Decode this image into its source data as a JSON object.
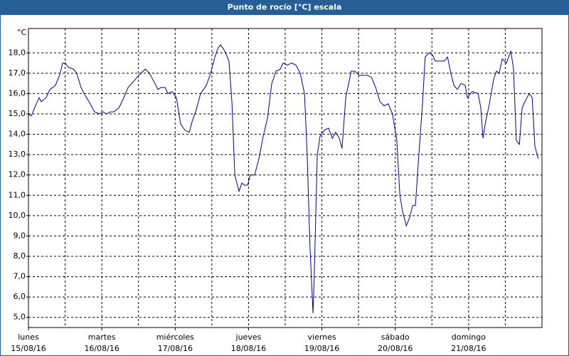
{
  "chart_data": {
    "type": "line",
    "title": "Punto de rocío [°C] escala",
    "y_unit": "°C",
    "series": [
      {
        "color": "#0000a0",
        "x": [
          0,
          0.9,
          2.3,
          3.5,
          4.2,
          5.8,
          7.0,
          8.8,
          10.2,
          11.2,
          12.1,
          13.0,
          14.7,
          15.8,
          17.2,
          18.6,
          20.2,
          21.6,
          23.3,
          24.4,
          25.6,
          26.8,
          27.9,
          29.6,
          30.9,
          32.6,
          34.4,
          36.1,
          38.2,
          39.6,
          41.0,
          42.4,
          43.3,
          44.7,
          45.6,
          47.0,
          48.4,
          49.8,
          51.2,
          52.6,
          53.5,
          54.9,
          56.3,
          58.2,
          59.6,
          61.0,
          61.9,
          62.8,
          64.2,
          65.6,
          66.6,
          67.5,
          68.9,
          69.8,
          70.7,
          71.7,
          72.6,
          74.0,
          75.4,
          76.8,
          78.2,
          79.6,
          81.0,
          82.4,
          83.3,
          84.7,
          86.1,
          87.5,
          88.9,
          90.3,
          91.2,
          92.1,
          93.1,
          93.5,
          94.5,
          95.4,
          96.8,
          98.2,
          99.4,
          100.5,
          101.7,
          102.6,
          103.8,
          105.6,
          106.8,
          108.2,
          109.4,
          110.8,
          112.2,
          113.6,
          115.0,
          116.4,
          117.7,
          119.1,
          120.5,
          121.5,
          122.4,
          123.6,
          124.7,
          125.7,
          126.6,
          127.5,
          128.9,
          129.8,
          131.0,
          132.2,
          133.1,
          135.0,
          136.1,
          137.1,
          138.2,
          139.2,
          140.3,
          141.5,
          142.9,
          143.6,
          145.2,
          147.1,
          148.0,
          148.7,
          149.4,
          150.8,
          152.2,
          153.1,
          154.0,
          155.0,
          156.4,
          157.8,
          158.7,
          159.6,
          160.6,
          161.5,
          162.4,
          163.8,
          164.8,
          165.7,
          166.6,
          166.8
        ],
        "values": [
          15.0,
          14.9,
          15.4,
          15.8,
          15.6,
          15.8,
          16.2,
          16.4,
          16.9,
          17.5,
          17.5,
          17.3,
          17.2,
          17.0,
          16.3,
          15.9,
          15.5,
          15.1,
          15.0,
          15.1,
          15.0,
          15.1,
          15.1,
          15.3,
          15.7,
          16.3,
          16.6,
          16.9,
          17.2,
          17.0,
          16.6,
          16.2,
          16.3,
          16.3,
          16.0,
          16.1,
          15.8,
          14.5,
          14.2,
          14.1,
          14.6,
          15.2,
          16.0,
          16.4,
          17.0,
          17.8,
          18.2,
          18.4,
          18.1,
          17.6,
          15.5,
          12.0,
          11.2,
          11.6,
          11.5,
          11.5,
          12.0,
          12.0,
          12.8,
          13.9,
          14.8,
          16.5,
          17.1,
          17.2,
          17.5,
          17.4,
          17.5,
          17.4,
          17.0,
          16.0,
          13.0,
          8.5,
          5.2,
          7.0,
          13.0,
          13.9,
          14.2,
          14.3,
          13.8,
          14.1,
          13.8,
          13.3,
          15.8,
          17.1,
          17.1,
          16.9,
          16.9,
          16.9,
          16.8,
          16.3,
          15.6,
          15.4,
          15.5,
          15.0,
          13.7,
          11.0,
          10.2,
          9.5,
          9.9,
          10.5,
          10.5,
          12.5,
          15.5,
          17.8,
          18.0,
          17.9,
          17.6,
          17.6,
          17.6,
          17.8,
          17.0,
          16.4,
          16.2,
          16.5,
          16.4,
          15.8,
          16.1,
          16.0,
          15.3,
          13.8,
          14.5,
          15.5,
          16.7,
          17.1,
          17.0,
          17.7,
          17.5,
          18.1,
          17.2,
          13.7,
          13.5,
          15.3,
          15.6,
          16.0,
          15.8,
          13.4,
          12.9,
          12.8
        ]
      }
    ],
    "xlim": [
      0,
      168
    ],
    "xticks": [
      {
        "value": 0,
        "label": "lunes",
        "date": "15/08/16"
      },
      {
        "value": 24,
        "label": "martes",
        "date": "16/08/16"
      },
      {
        "value": 48,
        "label": "miércoles",
        "date": "17/08/16"
      },
      {
        "value": 72,
        "label": "jueves",
        "date": "18/08/16"
      },
      {
        "value": 96,
        "label": "viernes",
        "date": "19/08/16"
      },
      {
        "value": 120,
        "label": "sábado",
        "date": "20/08/16"
      },
      {
        "value": 144,
        "label": "domingo",
        "date": "21/08/16"
      }
    ],
    "xminor": [
      12,
      36,
      60,
      84,
      108,
      132,
      156
    ],
    "ylim": [
      4.5,
      19.2
    ],
    "yticks": [
      {
        "value": 5,
        "label": "5,0"
      },
      {
        "value": 6,
        "label": "6,0"
      },
      {
        "value": 7,
        "label": "7,0"
      },
      {
        "value": 8,
        "label": "8,0"
      },
      {
        "value": 9,
        "label": "9,0"
      },
      {
        "value": 10,
        "label": "10,0"
      },
      {
        "value": 11,
        "label": "11,0"
      },
      {
        "value": 12,
        "label": "12,0"
      },
      {
        "value": 13,
        "label": "13,0"
      },
      {
        "value": 14,
        "label": "14,0"
      },
      {
        "value": 15,
        "label": "15,0"
      },
      {
        "value": 16,
        "label": "16,0"
      },
      {
        "value": 17,
        "label": "17,0"
      },
      {
        "value": 18,
        "label": "18,0"
      }
    ],
    "grid": true
  }
}
